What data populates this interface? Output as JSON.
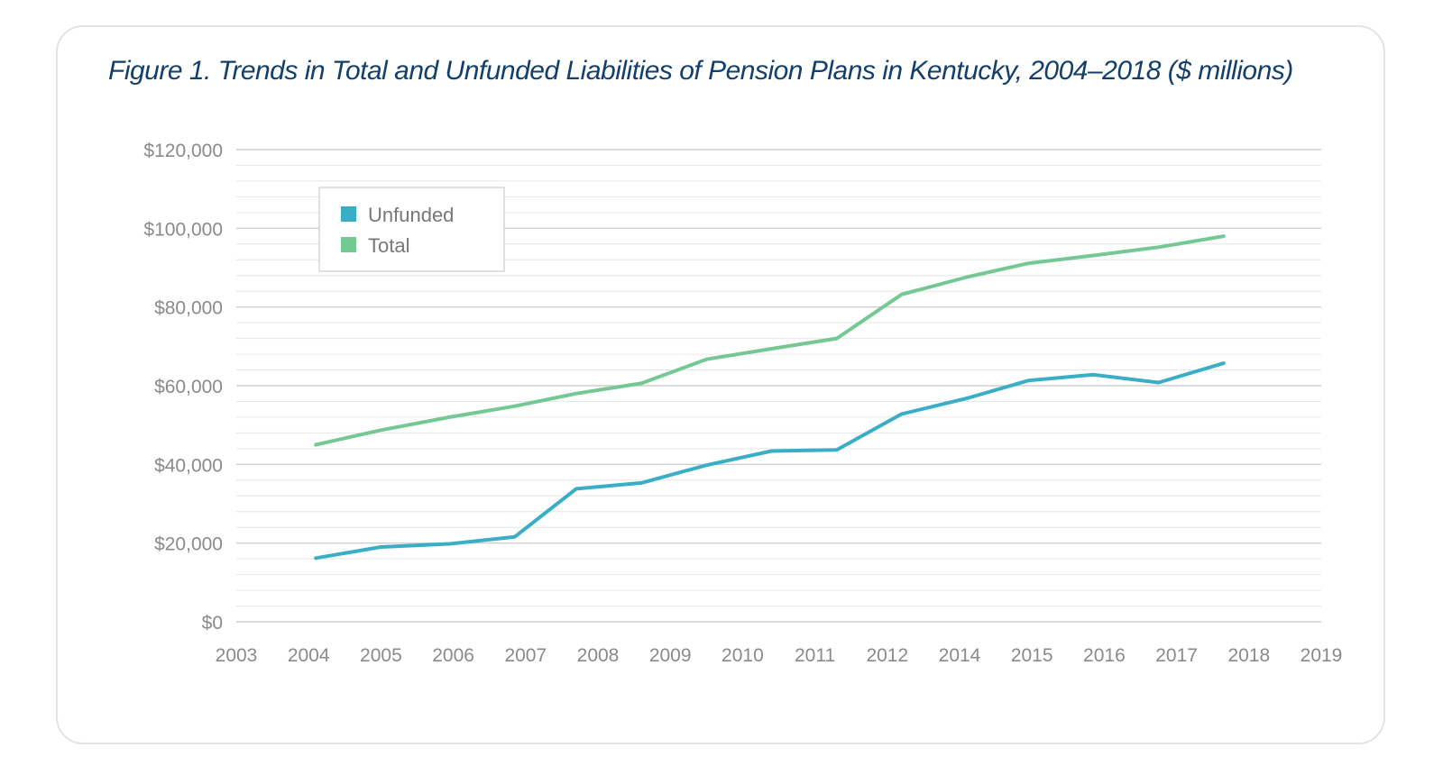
{
  "colors": {
    "title": "#123f6c",
    "unfunded": "#3aaec6",
    "total": "#74c894",
    "grid_major": "#cfcfcf",
    "grid_minor": "#e6e6e6",
    "axis_text": "#8a8a8a",
    "legend_border": "#cccccc"
  },
  "chart_data": {
    "type": "line",
    "title": "Figure 1. Trends in Total and Unfunded Liabilities of Pension Plans in Kentucky, 2004–2018 ($ millions)",
    "xlabel": "",
    "ylabel": "",
    "x_ticks": [
      "2003",
      "2004",
      "2005",
      "2006",
      "2007",
      "2008",
      "2009",
      "2010",
      "2011",
      "2012",
      "2014",
      "2015",
      "2016",
      "2017",
      "2018",
      "2019"
    ],
    "y_ticks": [
      0,
      20000,
      40000,
      60000,
      80000,
      100000,
      120000
    ],
    "y_tick_labels": [
      "$0",
      "$20,000",
      "$40,000",
      "$60,000",
      "$80,000",
      "$100,000",
      "$120,000"
    ],
    "ylim": [
      0,
      120000
    ],
    "grid": true,
    "legend": {
      "position": "top-left",
      "entries": [
        "Unfunded",
        "Total"
      ]
    },
    "series": [
      {
        "name": "Unfunded",
        "color_key": "unfunded",
        "points": [
          {
            "x": 1.1,
            "y": 16200
          },
          {
            "x": 2.0,
            "y": 19000
          },
          {
            "x": 2.95,
            "y": 19800
          },
          {
            "x": 3.85,
            "y": 21600
          },
          {
            "x": 4.7,
            "y": 33800
          },
          {
            "x": 5.6,
            "y": 35300
          },
          {
            "x": 6.5,
            "y": 39800
          },
          {
            "x": 7.4,
            "y": 43400
          },
          {
            "x": 8.3,
            "y": 43700
          },
          {
            "x": 9.2,
            "y": 52800
          },
          {
            "x": 10.1,
            "y": 56800
          },
          {
            "x": 10.95,
            "y": 61300
          },
          {
            "x": 11.85,
            "y": 62800
          },
          {
            "x": 12.75,
            "y": 60800
          },
          {
            "x": 13.65,
            "y": 65700
          }
        ]
      },
      {
        "name": "Total",
        "color_key": "total",
        "points": [
          {
            "x": 1.1,
            "y": 45000
          },
          {
            "x": 2.0,
            "y": 48700
          },
          {
            "x": 2.95,
            "y": 52000
          },
          {
            "x": 3.85,
            "y": 54800
          },
          {
            "x": 4.7,
            "y": 58000
          },
          {
            "x": 5.6,
            "y": 60600
          },
          {
            "x": 6.5,
            "y": 66700
          },
          {
            "x": 7.4,
            "y": 69400
          },
          {
            "x": 8.3,
            "y": 72000
          },
          {
            "x": 9.2,
            "y": 83200
          },
          {
            "x": 10.1,
            "y": 87600
          },
          {
            "x": 10.95,
            "y": 91100
          },
          {
            "x": 11.85,
            "y": 93100
          },
          {
            "x": 12.75,
            "y": 95200
          },
          {
            "x": 13.65,
            "y": 98000
          }
        ]
      }
    ]
  }
}
